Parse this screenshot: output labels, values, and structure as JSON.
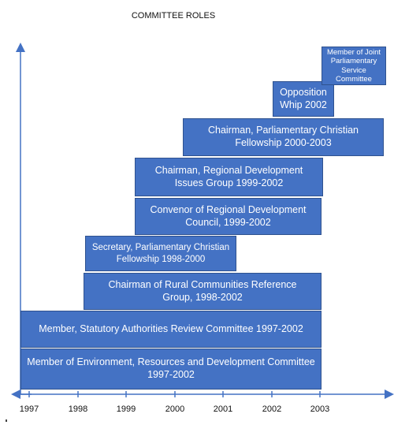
{
  "title": "COMMITTEE ROLES",
  "colors": {
    "bar_fill": "#4472c4",
    "bar_border": "#2f528f",
    "axis": "#4472c4",
    "text_on_bar": "#ffffff"
  },
  "axis": {
    "years": [
      "1997",
      "1998",
      "1999",
      "2000",
      "2001",
      "2002",
      "2003"
    ]
  },
  "roles": [
    {
      "label": "Member of Environment, Resources and Development Committee 1997-2002"
    },
    {
      "label": "Member, Statutory Authorities Review Committee 1997-2002"
    },
    {
      "label": "Chairman of Rural Communities Reference Group, 1998-2002"
    },
    {
      "label": "Secretary, Parliamentary Christian Fellowship 1998-2000"
    },
    {
      "label": "Convenor of Regional Development Council, 1999-2002"
    },
    {
      "label": "Chairman, Regional Development Issues Group 1999-2002"
    },
    {
      "label": "Chairman, Parliamentary Christian Fellowship 2000-2003"
    },
    {
      "label": "Opposition Whip 2002"
    },
    {
      "label": "Member of Joint Parliamentary Service Committee"
    }
  ]
}
